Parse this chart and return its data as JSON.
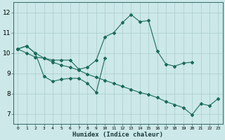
{
  "xlabel": "Humidex (Indice chaleur)",
  "bg_color": "#cce8e8",
  "grid_color": "#aacccc",
  "line_color": "#1a6b5a",
  "xlim": [
    -0.5,
    23.5
  ],
  "ylim": [
    6.5,
    12.5
  ],
  "xticks": [
    0,
    1,
    2,
    3,
    4,
    5,
    6,
    7,
    8,
    9,
    10,
    11,
    12,
    13,
    14,
    15,
    16,
    17,
    18,
    19,
    20,
    21,
    22,
    23
  ],
  "yticks": [
    7,
    8,
    9,
    10,
    11,
    12
  ],
  "line1_x": [
    0,
    1,
    2,
    3,
    4,
    5,
    6,
    7,
    8,
    9,
    10,
    11,
    12,
    13,
    14,
    15,
    16,
    17,
    18,
    19,
    20
  ],
  "line1_y": [
    10.2,
    10.35,
    10.0,
    9.75,
    9.65,
    9.65,
    9.65,
    9.2,
    9.3,
    9.65,
    10.8,
    11.0,
    11.5,
    11.9,
    11.55,
    11.6,
    10.1,
    9.45,
    9.35,
    9.5,
    9.55
  ],
  "line2_x": [
    0,
    1,
    2,
    3,
    4,
    5,
    6,
    7,
    8,
    9,
    10
  ],
  "line2_y": [
    10.2,
    10.35,
    10.0,
    8.85,
    8.6,
    8.7,
    8.75,
    8.75,
    8.5,
    8.05,
    9.75
  ],
  "line3_x": [
    0,
    1,
    2,
    3,
    4,
    5,
    6,
    7,
    8,
    9,
    10,
    11,
    12,
    13,
    14,
    15,
    16,
    17,
    18,
    19,
    20,
    21,
    22,
    23
  ],
  "line3_y": [
    10.2,
    10.0,
    9.8,
    9.75,
    9.55,
    9.4,
    9.3,
    9.15,
    8.95,
    8.8,
    8.65,
    8.5,
    8.35,
    8.2,
    8.05,
    7.95,
    7.8,
    7.6,
    7.45,
    7.3,
    6.95,
    7.5,
    7.4,
    7.75
  ]
}
